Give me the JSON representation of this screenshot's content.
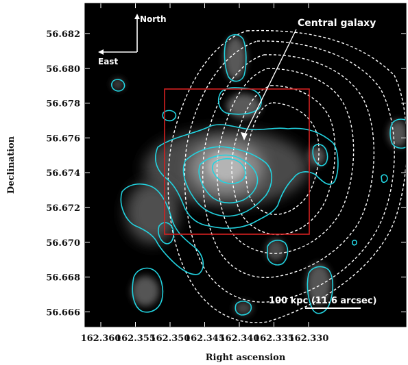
{
  "figure": {
    "xlabel": "Right ascension",
    "ylabel": "Declination",
    "x_ticks": [
      "162.360",
      "162.355",
      "162.350",
      "162.345",
      "162.340",
      "162.335",
      "162.330"
    ],
    "y_ticks": [
      "56.682",
      "56.680",
      "56.678",
      "56.676",
      "56.674",
      "56.672",
      "56.670",
      "56.668",
      "56.666"
    ],
    "annotations": {
      "north": "North",
      "east": "East",
      "central_galaxy": "Central galaxy",
      "scale_bar": "100 kpc (11.6 arcsec)"
    },
    "colors": {
      "background": "#000000",
      "optical_contours": "#22d3e0",
      "dashed_contours": "#ffffff",
      "box": "#d42020"
    }
  }
}
